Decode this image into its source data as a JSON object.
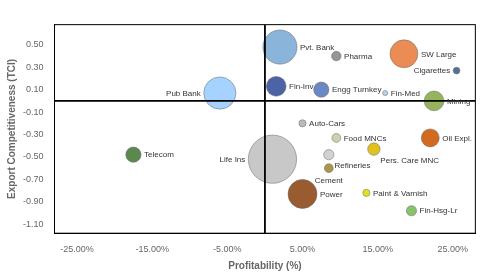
{
  "chart_data": {
    "type": "bubble",
    "xlabel": "Profitability (%)",
    "ylabel": "Export Competitiveness (TCI)",
    "annotations": [
      "Pvt. Bank",
      "Pharma",
      "SW Large",
      "Cigarettes",
      "Pub Bank",
      "Fin-Inv",
      "Engg Turnkey",
      "Fin-Med",
      "Mining",
      "Auto-Cars",
      "Food MNCs",
      "Oil Expl.",
      "Life Ins",
      "Refineries",
      "Cement",
      "Pers. Care MNC",
      "Power",
      "Paint & Varnish",
      "Fin-Hsg-Lr",
      "Telecom"
    ],
    "x": [
      2.0,
      9.5,
      18.5,
      25.5,
      -6.0,
      1.5,
      7.5,
      16.0,
      22.5,
      5.0,
      9.5,
      22.0,
      1.0,
      8.5,
      8.5,
      14.5,
      5.0,
      13.5,
      19.5,
      -17.5
    ],
    "values": [
      0.48,
      0.4,
      0.42,
      0.27,
      0.07,
      0.13,
      0.1,
      0.07,
      0.0,
      -0.2,
      -0.33,
      -0.33,
      -0.52,
      -0.48,
      -0.6,
      -0.43,
      -0.83,
      -0.82,
      -0.98,
      -0.48
    ],
    "sizes": [
      9000,
      700,
      6000,
      350,
      8000,
      3000,
      1800,
      200,
      3000,
      400,
      600,
      2500,
      18000,
      800,
      600,
      1200,
      6500,
      400,
      800,
      1800
    ],
    "colors": [
      "#7aaad4",
      "#888888",
      "#e87c3e",
      "#3a5f8a",
      "#99ccff",
      "#334d99",
      "#5577bb",
      "#aaccee",
      "#88aa44",
      "#b0b0b0",
      "#c8c8a0",
      "#cc5500",
      "#c0c0c0",
      "#cccccc",
      "#a08830",
      "#ddb800",
      "#8b4513",
      "#dddd00",
      "#77bb55",
      "#447733"
    ],
    "xlim": [
      -28,
      28
    ],
    "ylim": [
      -1.18,
      0.68
    ],
    "xticks": [
      {
        "value": -25,
        "label": "-25.00%"
      },
      {
        "value": -15,
        "label": "-15.00%"
      },
      {
        "value": -5,
        "label": "-5.00%"
      },
      {
        "value": 5,
        "label": "5.00%"
      },
      {
        "value": 15,
        "label": "15.00%"
      },
      {
        "value": 25,
        "label": "25.00%"
      }
    ],
    "yticks": [
      {
        "value": -1.1,
        "label": "-1.10"
      },
      {
        "value": -0.9,
        "label": "-0.90"
      },
      {
        "value": -0.7,
        "label": "-0.70"
      },
      {
        "value": -0.5,
        "label": "-0.50"
      },
      {
        "value": -0.3,
        "label": "-0.30"
      },
      {
        "value": -0.1,
        "label": "-0.10"
      },
      {
        "value": 0.1,
        "label": "0.10"
      },
      {
        "value": 0.3,
        "label": "0.30"
      },
      {
        "value": 0.5,
        "label": "0.50"
      }
    ],
    "grid": false
  }
}
